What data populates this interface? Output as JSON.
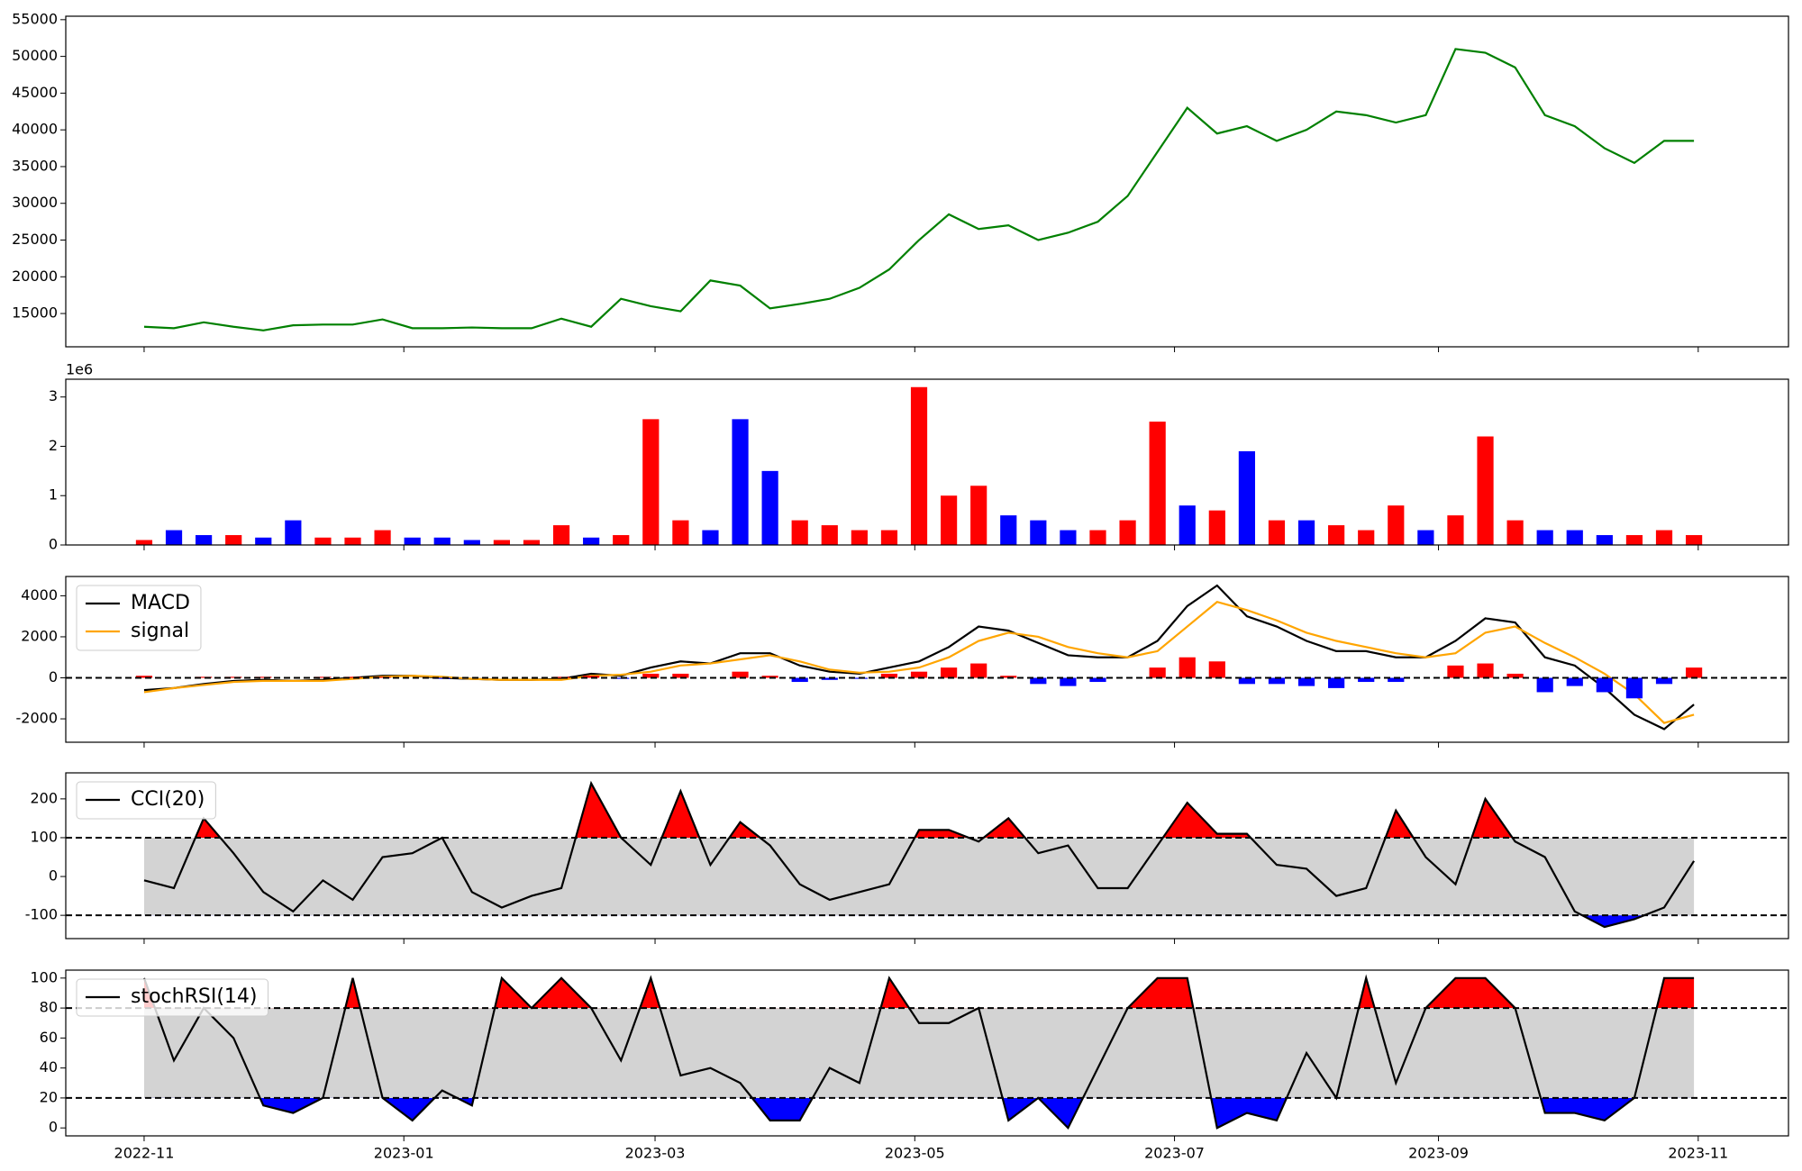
{
  "chart_data": [
    {
      "type": "line",
      "x": [
        0,
        7,
        14,
        21,
        28,
        35,
        42,
        49,
        56,
        63,
        70,
        77,
        84,
        91,
        98,
        105,
        112,
        119,
        126,
        133,
        140,
        147,
        154,
        161,
        168,
        175,
        182,
        189,
        196,
        203,
        210,
        217,
        224,
        231,
        238,
        245,
        252,
        259,
        266,
        273,
        280,
        287,
        294,
        301,
        308,
        315,
        322,
        329,
        336,
        343,
        350,
        357,
        364
      ],
      "series": [
        {
          "color": "green",
          "values": [
            13200,
            13000,
            13800,
            13200,
            12700,
            13400,
            13500,
            13500,
            14200,
            13000,
            13000,
            13100,
            13000,
            13000,
            14300,
            13200,
            17000,
            16000,
            15300,
            19500,
            18800,
            15700,
            16300,
            17000,
            18500,
            21000,
            25000,
            28500,
            26500,
            27000,
            25000,
            26000,
            27500,
            31000,
            37000,
            43000,
            39500,
            40500,
            38500,
            40000,
            42500,
            42000,
            41000,
            42000,
            51000,
            50500,
            48500,
            42000,
            40500,
            37500,
            35500,
            38500,
            38500
          ]
        }
      ],
      "ylim": [
        10470,
        55470
      ],
      "yticks": [
        15000,
        20000,
        25000,
        30000,
        35000,
        40000,
        45000,
        50000,
        55000
      ]
    },
    {
      "type": "bar",
      "y_offset_label": "1e6",
      "series": [
        {
          "values": [
            0.1,
            0.3,
            0.2,
            0.2,
            0.15,
            0.5,
            0.15,
            0.15,
            0.3,
            0.15,
            0.15,
            0.1,
            0.1,
            0.1,
            0.4,
            0.15,
            0.2,
            2.55,
            0.5,
            0.3,
            2.55,
            1.5,
            0.5,
            0.4,
            0.3,
            0.3,
            3.2,
            1.0,
            1.2,
            0.6,
            0.5,
            0.3,
            0.3,
            0.5,
            2.5,
            0.8,
            0.7,
            1.9,
            0.5,
            0.5,
            0.4,
            0.3,
            0.8,
            0.3,
            0.6,
            2.2,
            0.5,
            0.3,
            0.3,
            0.2,
            0.2,
            0.3,
            0.2
          ],
          "colors": [
            "red",
            "blue",
            "blue",
            "red",
            "blue",
            "blue",
            "red",
            "red",
            "red",
            "blue",
            "blue",
            "blue",
            "red",
            "red",
            "red",
            "blue",
            "red",
            "red",
            "red",
            "blue",
            "blue",
            "blue",
            "red",
            "red",
            "red",
            "red",
            "red",
            "red",
            "red",
            "blue",
            "blue",
            "blue",
            "red",
            "red",
            "red",
            "blue",
            "red",
            "blue",
            "red",
            "blue",
            "red",
            "red",
            "red",
            "blue",
            "red",
            "red",
            "red",
            "blue",
            "blue",
            "blue",
            "red",
            "red",
            "red"
          ]
        }
      ],
      "ylim": [
        0,
        3.36
      ],
      "yticks": [
        0,
        1,
        2,
        3
      ]
    },
    {
      "type": "line",
      "legend": "upper left",
      "hlines": [
        0
      ],
      "series": [
        {
          "name": "MACD",
          "color": "black",
          "values": [
            -600,
            -500,
            -300,
            -150,
            -100,
            -150,
            -100,
            0,
            100,
            100,
            0,
            -50,
            -100,
            -100,
            -50,
            200,
            100,
            500,
            800,
            700,
            1200,
            1200,
            600,
            300,
            200,
            500,
            800,
            1500,
            2500,
            2300,
            1700,
            1100,
            1000,
            1000,
            1800,
            3500,
            4500,
            3000,
            2500,
            1800,
            1300,
            1300,
            1000,
            1000,
            1800,
            2900,
            2700,
            1000,
            600,
            -500,
            -1800,
            -2500,
            -1300
          ]
        },
        {
          "name": "signal",
          "color": "orange",
          "values": [
            -700,
            -500,
            -350,
            -200,
            -150,
            -150,
            -150,
            -50,
            50,
            100,
            50,
            -50,
            -100,
            -100,
            -100,
            100,
            150,
            300,
            600,
            700,
            900,
            1100,
            800,
            400,
            250,
            300,
            500,
            1000,
            1800,
            2200,
            2000,
            1500,
            1200,
            1000,
            1300,
            2500,
            3700,
            3300,
            2800,
            2200,
            1800,
            1500,
            1200,
            1000,
            1200,
            2200,
            2500,
            1700,
            1000,
            200,
            -800,
            -2200,
            -1800
          ]
        },
        {
          "style": "bar",
          "pos_color": "red",
          "neg_color": "blue",
          "values": [
            100,
            0,
            50,
            50,
            50,
            0,
            50,
            50,
            50,
            0,
            -50,
            0,
            0,
            0,
            50,
            100,
            -50,
            200,
            200,
            0,
            300,
            100,
            -200,
            -100,
            -50,
            200,
            300,
            500,
            700,
            100,
            -300,
            -400,
            -200,
            0,
            500,
            1000,
            800,
            -300,
            -300,
            -400,
            -500,
            -200,
            -200,
            0,
            600,
            700,
            200,
            -700,
            -400,
            -700,
            -1000,
            -300,
            500
          ]
        }
      ],
      "ylim": [
        -3140,
        4940
      ],
      "yticks": [
        -2000,
        0,
        2000,
        4000
      ]
    },
    {
      "type": "line",
      "legend": "upper left",
      "hlines": [
        100,
        -100
      ],
      "band_color": "lightgray",
      "above_color": "red",
      "below_color": "blue",
      "series": [
        {
          "name": "CCI(20)",
          "color": "black",
          "values": [
            -10,
            -30,
            150,
            60,
            -40,
            -90,
            -10,
            -60,
            50,
            60,
            100,
            -40,
            -80,
            -50,
            -30,
            240,
            100,
            30,
            220,
            30,
            140,
            80,
            -20,
            -60,
            -40,
            -20,
            120,
            120,
            90,
            150,
            60,
            80,
            -30,
            -30,
            80,
            190,
            110,
            110,
            30,
            20,
            -50,
            -30,
            170,
            50,
            -20,
            200,
            90,
            50,
            -90,
            -130,
            -110,
            -80,
            40
          ]
        }
      ],
      "ylim": [
        -160,
        267
      ],
      "yticks": [
        -100,
        0,
        100,
        200
      ]
    },
    {
      "type": "line",
      "legend": "upper left",
      "hlines": [
        80,
        20
      ],
      "band_color": "lightgray",
      "above_color": "red",
      "below_color": "blue",
      "series": [
        {
          "name": "stochRSI(14)",
          "color": "black",
          "values": [
            100,
            45,
            80,
            60,
            15,
            10,
            20,
            100,
            20,
            5,
            25,
            15,
            100,
            80,
            100,
            80,
            45,
            100,
            35,
            40,
            30,
            5,
            5,
            40,
            30,
            100,
            70,
            70,
            80,
            5,
            20,
            0,
            40,
            80,
            100,
            100,
            0,
            10,
            5,
            50,
            20,
            100,
            30,
            80,
            100,
            100,
            80,
            10,
            10,
            5,
            20,
            100,
            100
          ]
        }
      ],
      "ylim": [
        -5.3,
        105.3
      ],
      "yticks": [
        0,
        20,
        40,
        60,
        80,
        100
      ],
      "xlim": [
        -18.4,
        386.2
      ],
      "xticks": [
        {
          "value": 0,
          "label": "2022-11"
        },
        {
          "value": 61,
          "label": "2023-01"
        },
        {
          "value": 120,
          "label": "2023-03"
        },
        {
          "value": 181,
          "label": "2023-05"
        },
        {
          "value": 242,
          "label": "2023-07"
        },
        {
          "value": 304,
          "label": "2023-09"
        },
        {
          "value": 365,
          "label": "2023-11"
        }
      ]
    }
  ]
}
